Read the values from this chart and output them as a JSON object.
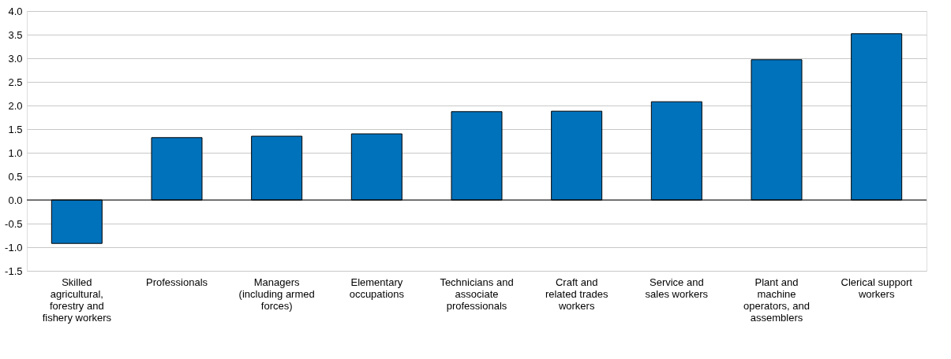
{
  "chart_data": {
    "type": "bar",
    "categories": [
      "Skilled agricultural, forestry and fishery workers",
      "Professionals",
      "Managers (including armed forces)",
      "Elementary occupations",
      "Technicians and associate professionals",
      "Craft and related trades workers",
      "Service and sales workers",
      "Plant and machine operators, and assemblers",
      "Clerical support workers"
    ],
    "values": [
      -0.92,
      1.32,
      1.35,
      1.4,
      1.87,
      1.88,
      2.08,
      2.97,
      3.52
    ],
    "color": "#0072bc",
    "ylim": [
      -1.5,
      4.0
    ],
    "yticks": [
      {
        "value": -1.5,
        "label": "-1.5"
      },
      {
        "value": -1.0,
        "label": "-1.0"
      },
      {
        "value": -0.5,
        "label": "-0.5"
      },
      {
        "value": 0,
        "label": "0.0"
      },
      {
        "value": 0.5,
        "label": "0.5"
      },
      {
        "value": 1.0,
        "label": "1.0"
      },
      {
        "value": 1.5,
        "label": "1.5"
      },
      {
        "value": 2.0,
        "label": "2.0"
      },
      {
        "value": 2.5,
        "label": "2.5"
      },
      {
        "value": 3.0,
        "label": "3.0"
      },
      {
        "value": 3.5,
        "label": "3.5"
      },
      {
        "value": 4.0,
        "label": "4.0"
      }
    ],
    "grid": "y"
  }
}
